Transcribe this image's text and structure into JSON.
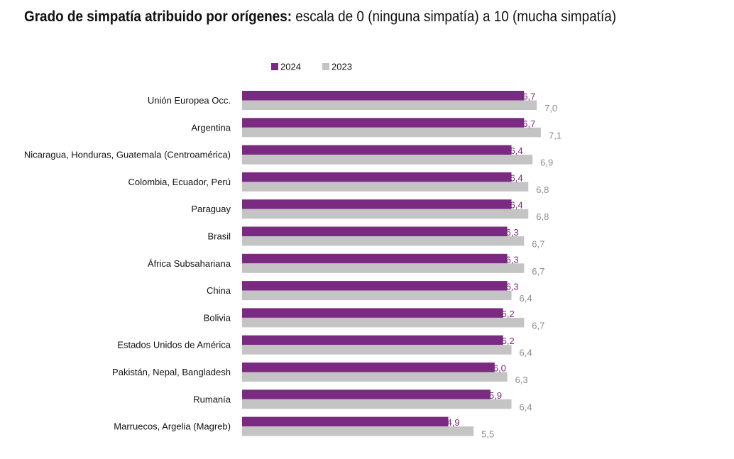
{
  "header": {
    "title_bold": "Grado de simpatía atribuido por orígenes:",
    "title_rest": "escala de 0 (ninguna simpatía) a 10 (mucha simpatía)"
  },
  "colors": {
    "series_2024": "#7b2a82",
    "series_2023": "#c4c4c4",
    "label_2024": "#7b2a82",
    "label_2023": "#8c8c8c"
  },
  "chart_data": {
    "type": "bar",
    "orientation": "horizontal",
    "title": "Grado de simpatía atribuido por orígenes: escala de 0 (ninguna simpatía) a 10 (mucha simpatía)",
    "categories": [
      "Unión Europea Occ.",
      "Argentina",
      "Nicaragua, Honduras, Guatemala (Centroamérica)",
      "Colombia, Ecuador, Perú",
      "Paraguay",
      "Brasil",
      "África Subsahariana",
      "China",
      "Bolivia",
      "Estados Unidos de  América",
      "Pakistán, Nepal, Bangladesh",
      "Rumanía",
      "Marruecos, Argelia (Magreb)"
    ],
    "series": [
      {
        "name": "2024",
        "values": [
          6.7,
          6.7,
          6.4,
          6.4,
          6.4,
          6.3,
          6.3,
          6.3,
          6.2,
          6.2,
          6.0,
          5.9,
          4.9
        ],
        "labels": [
          "6,7",
          "6,7",
          "6,4",
          "6,4",
          "6,4",
          "6,3",
          "6,3",
          "6,3",
          "6,2",
          "6,2",
          "6,0",
          "5,9",
          "4,9"
        ]
      },
      {
        "name": "2023",
        "values": [
          7.0,
          7.1,
          6.9,
          6.8,
          6.8,
          6.7,
          6.7,
          6.4,
          6.7,
          6.4,
          6.3,
          6.4,
          5.5
        ],
        "labels": [
          "7,0",
          "7,1",
          "6,9",
          "6,8",
          "6,8",
          "6,7",
          "6,7",
          "6,4",
          "6,7",
          "6,4",
          "6,3",
          "6,4",
          "5,5"
        ]
      }
    ],
    "xlim": [
      0,
      10
    ],
    "grid": false,
    "legend": "top-center"
  }
}
